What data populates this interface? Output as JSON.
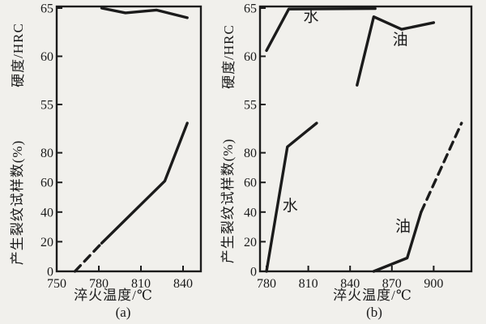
{
  "meta": {
    "background": "#f1f0ec",
    "ink": "#1b1b1b",
    "figure_description_visible_text_only": true
  },
  "chart_data": [
    {
      "type": "line",
      "title": "(a)",
      "xlabel": "淬火温度/℃",
      "xlim": [
        750,
        853
      ],
      "x_ticks": [
        750,
        780,
        810,
        840
      ],
      "grid": false,
      "y_axes": [
        {
          "id": "hrc",
          "label": "硬度/HRC",
          "ticks": [
            65,
            60,
            55
          ],
          "ylim": [
            55,
            65.2
          ]
        },
        {
          "id": "crack",
          "label": "产生裂纹试样数(%)",
          "ticks": [
            80,
            60,
            40,
            20,
            0
          ],
          "ylim": [
            0,
            100
          ]
        }
      ],
      "series": [
        {
          "id": "hardness",
          "axis": "hrc",
          "segments": [
            {
              "style": "solid",
              "points": [
                [
                  782,
                  65.0
                ],
                [
                  799,
                  64.5
                ],
                [
                  821,
                  64.8
                ],
                [
                  843,
                  64.0
                ]
              ]
            }
          ]
        },
        {
          "id": "crack-percentage",
          "axis": "crack",
          "segments": [
            {
              "style": "dashed",
              "points": [
                [
                  763,
                  0
                ],
                [
                  782,
                  19
                ]
              ]
            },
            {
              "style": "solid",
              "points": [
                [
                  782,
                  19
                ],
                [
                  827,
                  61
                ],
                [
                  843,
                  100
                ]
              ]
            }
          ]
        }
      ],
      "annotations": []
    },
    {
      "type": "line",
      "title": "(b)",
      "xlabel": "淬火温度/℃",
      "xlim": [
        775,
        927
      ],
      "x_ticks": [
        780,
        810,
        840,
        870,
        900
      ],
      "grid": false,
      "y_axes": [
        {
          "id": "hrc",
          "label": "硬度/HRC",
          "ticks": [
            65,
            60,
            55
          ],
          "ylim": [
            55,
            65.2
          ]
        },
        {
          "id": "crack",
          "label": "产生裂纹试样数(%)",
          "ticks": [
            80,
            60,
            40,
            20,
            0
          ],
          "ylim": [
            0,
            100
          ]
        }
      ],
      "series": [
        {
          "id": "water-hardness",
          "axis": "hrc",
          "segments": [
            {
              "style": "solid",
              "points": [
                [
                  780,
                  60.6
                ],
                [
                  796,
                  64.9
                ],
                [
                  858,
                  64.95
                ]
              ]
            }
          ]
        },
        {
          "id": "oil-hardness",
          "axis": "hrc",
          "segments": [
            {
              "style": "solid",
              "points": [
                [
                  845,
                  57.0
                ],
                [
                  857,
                  64.1
                ],
                [
                  877,
                  62.8
                ],
                [
                  900,
                  63.5
                ]
              ]
            }
          ]
        },
        {
          "id": "water-crack-percentage",
          "axis": "crack",
          "segments": [
            {
              "style": "solid",
              "points": [
                [
                  780,
                  0
                ],
                [
                  795,
                  84
                ],
                [
                  816,
                  100
                ]
              ]
            }
          ]
        },
        {
          "id": "oil-crack-percentage",
          "axis": "crack",
          "segments": [
            {
              "style": "solid",
              "points": [
                [
                  857,
                  0
                ],
                [
                  881,
                  9
                ],
                [
                  891,
                  40
                ]
              ]
            },
            {
              "style": "dashed",
              "points": [
                [
                  891,
                  40
                ],
                [
                  920,
                  100
                ]
              ]
            }
          ]
        }
      ],
      "annotations": [
        {
          "text": "水",
          "axis": "hrc",
          "x": 812,
          "y": 63.6
        },
        {
          "text": "油",
          "axis": "hrc",
          "x": 876,
          "y": 61.2
        },
        {
          "text": "水",
          "axis": "crack",
          "x": 797,
          "y": 41
        },
        {
          "text": "油",
          "axis": "crack",
          "x": 878,
          "y": 27
        }
      ]
    }
  ]
}
